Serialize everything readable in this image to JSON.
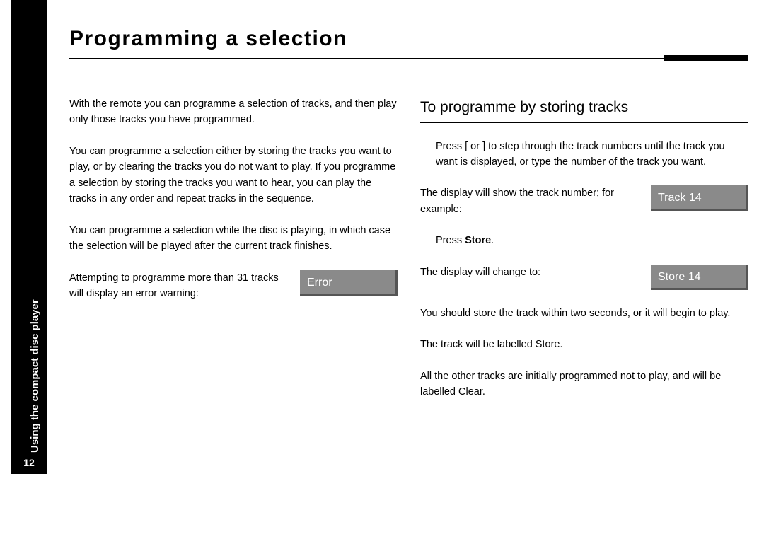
{
  "page_number": "12",
  "section_label": "Using the compact disc player",
  "title": "Programming a selection",
  "left": {
    "p1": "With the remote you can programme a selection of tracks, and then play only those tracks you have programmed.",
    "p2": "You can programme a selection either by storing the tracks you want to play, or by clearing the tracks you do not want to play. If you programme a selection by storing the tracks you want to hear, you can play the tracks in any order and repeat tracks in the sequence.",
    "p3": "You can programme a selection while the disc is playing, in which case the selection will be played after the current track finishes.",
    "p4": "Attempting to programme more than 31 tracks will display an error warning:",
    "display_error": "Error"
  },
  "right": {
    "heading": "To programme by storing tracks",
    "step1": "Press [ or ] to step through the track numbers until the track you want is displayed, or type the number of the track you want.",
    "p_track_intro": "The display will show the track number; for example:",
    "display_track": "Track 14",
    "press_store_pre": "Press ",
    "press_store_bold": "Store",
    "press_store_post": ".",
    "p_change_to": "The display will change to:",
    "display_store": "Store 14",
    "p_two_seconds": "You should store the track within two seconds, or it will begin to play.",
    "p_labelled_store": "The track will be labelled Store.",
    "p_labelled_clear": "All the other tracks are initially programmed not to play, and will be labelled Clear."
  },
  "colors": {
    "black": "#000000",
    "white": "#ffffff",
    "display_bg": "#8a8a8a",
    "display_shadow": "#555555"
  }
}
